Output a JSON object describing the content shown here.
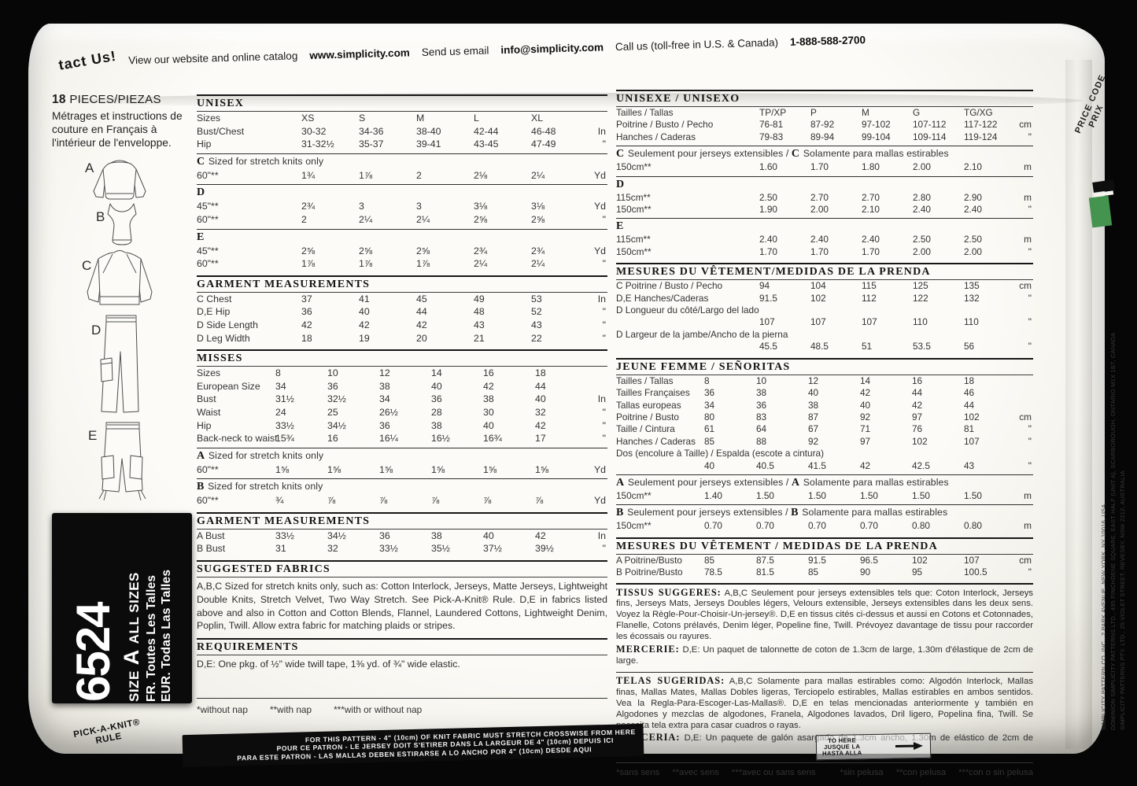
{
  "banner": {
    "contact": "tact Us!",
    "view": "View our website and online catalog",
    "url": "www.simplicity.com",
    "send": "Send us email",
    "email": "info@simplicity.com",
    "call": "Call us (toll-free in U.S. & Canada)",
    "phone": "1-888-588-2700"
  },
  "left_panel": {
    "pieces_number": "18",
    "pieces_label": "PIECES/PIEZAS",
    "french_note": "Métrages et instructions de couture en Français à l'intérieur de l'enveloppe.",
    "view_labels": [
      "A",
      "B",
      "C",
      "D",
      "E"
    ],
    "size_box": {
      "number": "6524",
      "size_pre": "SIZE",
      "size_a": "A",
      "size_post": "ALL SIZES",
      "fr_line": "FR. Toutes Les Talles",
      "eur_line": "EUR. Todas Las Talles"
    }
  },
  "english": {
    "tables": [
      {
        "id": "unisex",
        "major": true,
        "grid": "g5",
        "h": [
          {
            "t": "UNISEX",
            "b": 1
          }
        ],
        "rows": [
          {
            "l": "Sizes",
            "v": [
              "XS",
              "S",
              "M",
              "L",
              "XL"
            ],
            "u": ""
          },
          {
            "l": "Bust/Chest",
            "v": [
              "30-32",
              "34-36",
              "38-40",
              "42-44",
              "46-48"
            ],
            "u": "In"
          },
          {
            "l": "Hip",
            "v": [
              "31-32½",
              "35-37",
              "39-41",
              "43-45",
              "47-49"
            ],
            "u": "\""
          }
        ]
      },
      {
        "id": "view-c",
        "major": false,
        "grid": "g5",
        "h": [
          {
            "t": "C",
            "b": 1
          },
          {
            "t": " Sized for stretch knits only",
            "b": 0
          }
        ],
        "rows": [
          {
            "l": "60\"**",
            "v": [
              "1¾",
              "1⅞",
              "2",
              "2⅛",
              "2¼"
            ],
            "u": "Yd"
          }
        ]
      },
      {
        "id": "view-d",
        "major": false,
        "grid": "g5",
        "h": [
          {
            "t": "D",
            "b": 1
          }
        ],
        "rows": [
          {
            "l": "45\"**",
            "v": [
              "2¾",
              "3",
              "3",
              "3⅛",
              "3⅛"
            ],
            "u": "Yd"
          },
          {
            "l": "60\"**",
            "v": [
              "2",
              "2¼",
              "2¼",
              "2⅝",
              "2⅝"
            ],
            "u": "\""
          }
        ]
      },
      {
        "id": "view-e",
        "major": false,
        "grid": "g5",
        "h": [
          {
            "t": "E",
            "b": 1
          }
        ],
        "rows": [
          {
            "l": "45\"**",
            "v": [
              "2⅝",
              "2⅝",
              "2⅝",
              "2¾",
              "2¾"
            ],
            "u": "Yd"
          },
          {
            "l": "60\"**",
            "v": [
              "1⅞",
              "1⅞",
              "1⅞",
              "2¼",
              "2¼"
            ],
            "u": "\""
          }
        ]
      },
      {
        "id": "garment-unisex",
        "major": true,
        "grid": "g5",
        "h": [
          {
            "t": "GARMENT MEASUREMENTS",
            "b": 1
          }
        ],
        "rows": [
          {
            "l": "C Chest",
            "v": [
              "37",
              "41",
              "45",
              "49",
              "53"
            ],
            "u": "In"
          },
          {
            "l": "D,E Hip",
            "v": [
              "36",
              "40",
              "44",
              "48",
              "52"
            ],
            "u": "\""
          },
          {
            "l": "D Side Length",
            "v": [
              "42",
              "42",
              "42",
              "43",
              "43"
            ],
            "u": "\""
          },
          {
            "l": "D Leg Width",
            "v": [
              "18",
              "19",
              "20",
              "21",
              "22"
            ],
            "u": "\""
          }
        ]
      },
      {
        "id": "misses",
        "major": true,
        "grid": "g6",
        "h": [
          {
            "t": "MISSES",
            "b": 1
          }
        ],
        "rows": [
          {
            "l": "Sizes",
            "v": [
              "8",
              "10",
              "12",
              "14",
              "16",
              "18"
            ],
            "u": ""
          },
          {
            "l": "European Size",
            "v": [
              "34",
              "36",
              "38",
              "40",
              "42",
              "44"
            ],
            "u": ""
          },
          {
            "l": "Bust",
            "v": [
              "31½",
              "32½",
              "34",
              "36",
              "38",
              "40"
            ],
            "u": "In"
          },
          {
            "l": "Waist",
            "v": [
              "24",
              "25",
              "26½",
              "28",
              "30",
              "32"
            ],
            "u": "\""
          },
          {
            "l": "Hip",
            "v": [
              "33½",
              "34½",
              "36",
              "38",
              "40",
              "42"
            ],
            "u": "\""
          },
          {
            "l": "Back-neck to waist",
            "v": [
              "15¾",
              "16",
              "16¼",
              "16½",
              "16¾",
              "17"
            ],
            "u": "\""
          }
        ]
      },
      {
        "id": "view-a",
        "major": false,
        "grid": "g6",
        "h": [
          {
            "t": "A",
            "b": 1
          },
          {
            "t": " Sized for stretch knits only",
            "b": 0
          }
        ],
        "rows": [
          {
            "l": "60\"**",
            "v": [
              "1⅝",
              "1⅝",
              "1⅝",
              "1⅝",
              "1⅝",
              "1⅝"
            ],
            "u": "Yd"
          }
        ]
      },
      {
        "id": "view-b",
        "major": false,
        "grid": "g6",
        "h": [
          {
            "t": "B",
            "b": 1
          },
          {
            "t": " Sized for stretch knits only",
            "b": 0
          }
        ],
        "rows": [
          {
            "l": "60\"**",
            "v": [
              "¾",
              "⅞",
              "⅞",
              "⅞",
              "⅞",
              "⅞"
            ],
            "u": "Yd"
          }
        ]
      },
      {
        "id": "garment-misses",
        "major": true,
        "grid": "g6",
        "h": [
          {
            "t": "GARMENT MEASUREMENTS",
            "b": 1
          }
        ],
        "rows": [
          {
            "l": "A Bust",
            "v": [
              "33½",
              "34½",
              "36",
              "38",
              "40",
              "42"
            ],
            "u": "In"
          },
          {
            "l": "B Bust",
            "v": [
              "31",
              "32",
              "33½",
              "35½",
              "37½",
              "39½"
            ],
            "u": "\""
          }
        ]
      }
    ],
    "fabrics_title": "SUGGESTED FABRICS",
    "fabrics_text": "A,B,C Sized for stretch knits only, such as: Cotton Interlock, Jerseys, Matte Jerseys, Lightweight Double Knits, Stretch Velvet, Two Way Stretch. See Pick-A-Knit® Rule. D,E in fabrics listed above and also in Cotton and Cotton Blends, Flannel, Laundered Cottons, Lightweight Denim, Poplin, Twill. Allow extra fabric for matching plaids or stripes.",
    "requirements_title": "REQUIREMENTS",
    "requirements_text": "D,E: One pkg. of ½\" wide twill tape, 1⅜ yd. of ¾\" wide elastic.",
    "footnotes": [
      "*without nap",
      "**with nap",
      "***with or without nap"
    ]
  },
  "french": {
    "tables": [
      {
        "id": "unisexe",
        "major": true,
        "grid": "f5",
        "h": [
          {
            "t": "UNISEXE / UNISEXO",
            "b": 1
          }
        ],
        "rows": [
          {
            "l": "Tailles / Tallas",
            "v": [
              "TP/XP",
              "P",
              "M",
              "G",
              "TG/XG"
            ],
            "u": ""
          },
          {
            "l": "Poitrine / Busto / Pecho",
            "v": [
              "76-81",
              "87-92",
              "97-102",
              "107-112",
              "117-122"
            ],
            "u": "cm"
          },
          {
            "l": "Hanches / Caderas",
            "v": [
              "79-83",
              "89-94",
              "99-104",
              "109-114",
              "119-124"
            ],
            "u": "\""
          }
        ]
      },
      {
        "id": "vue-c",
        "major": false,
        "grid": "f5",
        "h": [
          {
            "t": "C",
            "b": 1
          },
          {
            "t": " Seulement pour jerseys extensibles / ",
            "b": 0
          },
          {
            "t": "C",
            "b": 1
          },
          {
            "t": " Solamente para mallas estirables",
            "b": 0
          }
        ],
        "rows": [
          {
            "l": "150cm**",
            "v": [
              "1.60",
              "1.70",
              "1.80",
              "2.00",
              "2.10"
            ],
            "u": "m"
          }
        ]
      },
      {
        "id": "vue-d",
        "major": false,
        "grid": "f5",
        "h": [
          {
            "t": "D",
            "b": 1
          }
        ],
        "rows": [
          {
            "l": "115cm**",
            "v": [
              "2.50",
              "2.70",
              "2.70",
              "2.80",
              "2.90"
            ],
            "u": "m"
          },
          {
            "l": "150cm**",
            "v": [
              "1.90",
              "2.00",
              "2.10",
              "2.40",
              "2.40"
            ],
            "u": "\""
          }
        ]
      },
      {
        "id": "vue-e",
        "major": false,
        "grid": "f5",
        "h": [
          {
            "t": "E",
            "b": 1
          }
        ],
        "rows": [
          {
            "l": "115cm**",
            "v": [
              "2.40",
              "2.40",
              "2.40",
              "2.50",
              "2.50"
            ],
            "u": "m"
          },
          {
            "l": "150cm**",
            "v": [
              "1.70",
              "1.70",
              "1.70",
              "2.00",
              "2.00"
            ],
            "u": "\""
          }
        ]
      },
      {
        "id": "mesures-unisexe",
        "major": true,
        "grid": "f5",
        "h": [
          {
            "t": "MESURES DU VÊTEMENT/MEDIDAS DE LA PRENDA",
            "b": 1
          }
        ],
        "rows": [
          {
            "l": "C Poitrine / Busto / Pecho",
            "v": [
              "94",
              "104",
              "115",
              "125",
              "135"
            ],
            "u": "cm"
          },
          {
            "l": "D,E Hanches/Caderas",
            "v": [
              "91.5",
              "102",
              "112",
              "122",
              "132"
            ],
            "u": "\""
          },
          {
            "l": "D Longueur du côté/Largo del lado",
            "v": [],
            "u": ""
          },
          {
            "l": "",
            "v": [
              "107",
              "107",
              "107",
              "110",
              "110"
            ],
            "u": "\""
          },
          {
            "l": "D Largeur de la jambe/Ancho de la pierna",
            "v": [],
            "u": ""
          },
          {
            "l": "",
            "v": [
              "45.5",
              "48.5",
              "51",
              "53.5",
              "56"
            ],
            "u": "\""
          }
        ]
      },
      {
        "id": "jeune-femme",
        "major": true,
        "grid": "f6",
        "h": [
          {
            "t": "JEUNE FEMME / SEÑORITAS",
            "b": 1
          }
        ],
        "rows": [
          {
            "l": "Tailles / Tallas",
            "v": [
              "8",
              "10",
              "12",
              "14",
              "16",
              "18"
            ],
            "u": ""
          },
          {
            "l": "Tailles Françaises",
            "v": [
              "36",
              "38",
              "40",
              "42",
              "44",
              "46"
            ],
            "u": ""
          },
          {
            "l": "Tallas europeas",
            "v": [
              "34",
              "36",
              "38",
              "40",
              "42",
              "44"
            ],
            "u": ""
          },
          {
            "l": "Poitrine / Busto",
            "v": [
              "80",
              "83",
              "87",
              "92",
              "97",
              "102"
            ],
            "u": "cm"
          },
          {
            "l": "Taille / Cintura",
            "v": [
              "61",
              "64",
              "67",
              "71",
              "76",
              "81"
            ],
            "u": "\""
          },
          {
            "l": "Hanches / Caderas",
            "v": [
              "85",
              "88",
              "92",
              "97",
              "102",
              "107"
            ],
            "u": "\""
          },
          {
            "l": "Dos (encolure à Taille) / Espalda (escote a cintura)",
            "v": [],
            "u": ""
          },
          {
            "l": "",
            "v": [
              "40",
              "40.5",
              "41.5",
              "42",
              "42.5",
              "43"
            ],
            "u": "\""
          }
        ]
      },
      {
        "id": "vue-a",
        "major": false,
        "grid": "f6",
        "h": [
          {
            "t": "A",
            "b": 1
          },
          {
            "t": " Seulement pour jerseys extensibles / ",
            "b": 0
          },
          {
            "t": "A",
            "b": 1
          },
          {
            "t": " Solamente para mallas estirables",
            "b": 0
          }
        ],
        "rows": [
          {
            "l": "150cm**",
            "v": [
              "1.40",
              "1.50",
              "1.50",
              "1.50",
              "1.50",
              "1.50"
            ],
            "u": "m"
          }
        ]
      },
      {
        "id": "vue-b",
        "major": false,
        "grid": "f6",
        "h": [
          {
            "t": "B",
            "b": 1
          },
          {
            "t": " Seulement pour jerseys extensibles / ",
            "b": 0
          },
          {
            "t": "B",
            "b": 1
          },
          {
            "t": " Solamente para mallas estirables",
            "b": 0
          }
        ],
        "rows": [
          {
            "l": "150cm**",
            "v": [
              "0.70",
              "0.70",
              "0.70",
              "0.70",
              "0.80",
              "0.80"
            ],
            "u": "m"
          }
        ]
      },
      {
        "id": "mesures-jeune",
        "major": true,
        "grid": "f6",
        "h": [
          {
            "t": "MESURES DU VÊTEMENT / MEDIDAS DE LA PRENDA",
            "b": 1
          }
        ],
        "rows": [
          {
            "l": "A Poitrine/Busto",
            "v": [
              "85",
              "87.5",
              "91.5",
              "96.5",
              "102",
              "107"
            ],
            "u": "cm"
          },
          {
            "l": "B Poitrine/Busto",
            "v": [
              "78.5",
              "81.5",
              "85",
              "90",
              "95",
              "100.5"
            ],
            "u": "\""
          }
        ]
      }
    ],
    "tissus_lead": "TISSUS SUGGERES:",
    "tissus_text": "A,B,C Seulement pour jerseys extensibles tels que: Coton Interlock, Jerseys fins, Jerseys Mats, Jerseys Doubles légers, Velours extensible, Jerseys extensibles dans les deux sens. Voyez la Règle-Pour-Choisir-Un-jersey®. D,E en tissus cités ci-dessus et aussi en Cotons et Cotonnades, Flanelle, Cotons prélavés, Denim léger, Popeline fine, Twill. Prévoyez davantage de tissu pour raccorder les écossais ou rayures.",
    "mercerie_lead": "MERCERIE:",
    "mercerie_text": "D,E: Un paquet de talonnette de coton de 1.3cm de large, 1.30m d'élastique de 2cm de large.",
    "telas_lead": "TELAS SUGERIDAS:",
    "telas_text": "A,B,C Solamente para mallas estirables como: Algodón Interlock, Mallas finas, Mallas Mates, Mallas Dobles ligeras, Terciopelo estirables, Mallas estirables en ambos sentidos. Vea la Regla-Para-Escoger-Las-Mallas®. D,E en telas mencionadas anteriormente y también en Algodones y mezclas de algodones, Franela, Algodones lavados, Dril ligero, Popelina fina, Twill. Se necesita tela extra para casar cuadros o rayas.",
    "merceria_lead": "MERCERIA:",
    "merceria_text": "D,E: Un paquete de galón asargado de 1.3cm ancho, 1.30m de elástico de 2cm de ancho.",
    "footnotes_fr": [
      "*sans sens",
      "**avec sens",
      "***avec ou sans sens"
    ],
    "footnotes_es": [
      "*sin pelusa",
      "**con pelusa",
      "***con o sin pelusa"
    ]
  },
  "bottom": {
    "rule_label_line1": "PICK-A-KNIT®",
    "rule_label_line2": "RULE",
    "bar_lines": [
      "FOR THIS PATTERN - 4\" (10cm) OF KNIT FABRIC MUST STRETCH CROSSWISE FROM HERE",
      "POUR CE PATRON - LE JERSEY DOIT S'ETIRER DANS LA LARGEUR DE 4\" (10cm) DEPUIS ICI",
      "PARA ESTE PATRON - LAS MALLAS DEBEN ESTIRARSE A LO ANCHO POR 4\" (10cm) DESDE AQUI"
    ],
    "to_here": [
      "TO HERE",
      "JUSQUE LA",
      "HASTA ALLA"
    ]
  },
  "right_edge": {
    "price_code": "PRICE CODE",
    "price_code2": "PRIX",
    "addresses": [
      "SIMPLICITY PATTERN CO. INC., 2 PARK AVENUE, NEW YORK, NY 10016, USA",
      "DOMINION SIMPLICITY PATTERNS LTD., 495 FINCHDENE SQUARE, EAST HALF (UNIT A), SCARBOROUGH, ONTARIO M1X 1B7, CANADA",
      "SIMPLICITY PATTERNS PTY. LTD., 25 VIOLET STREET, REVESBY, NSW 2212, AUSTRALIA"
    ]
  },
  "colors": {
    "background": "#060606",
    "paper": "#f3f2ec",
    "ink": "#1c1c1c",
    "swatch_green": "#44934e"
  }
}
